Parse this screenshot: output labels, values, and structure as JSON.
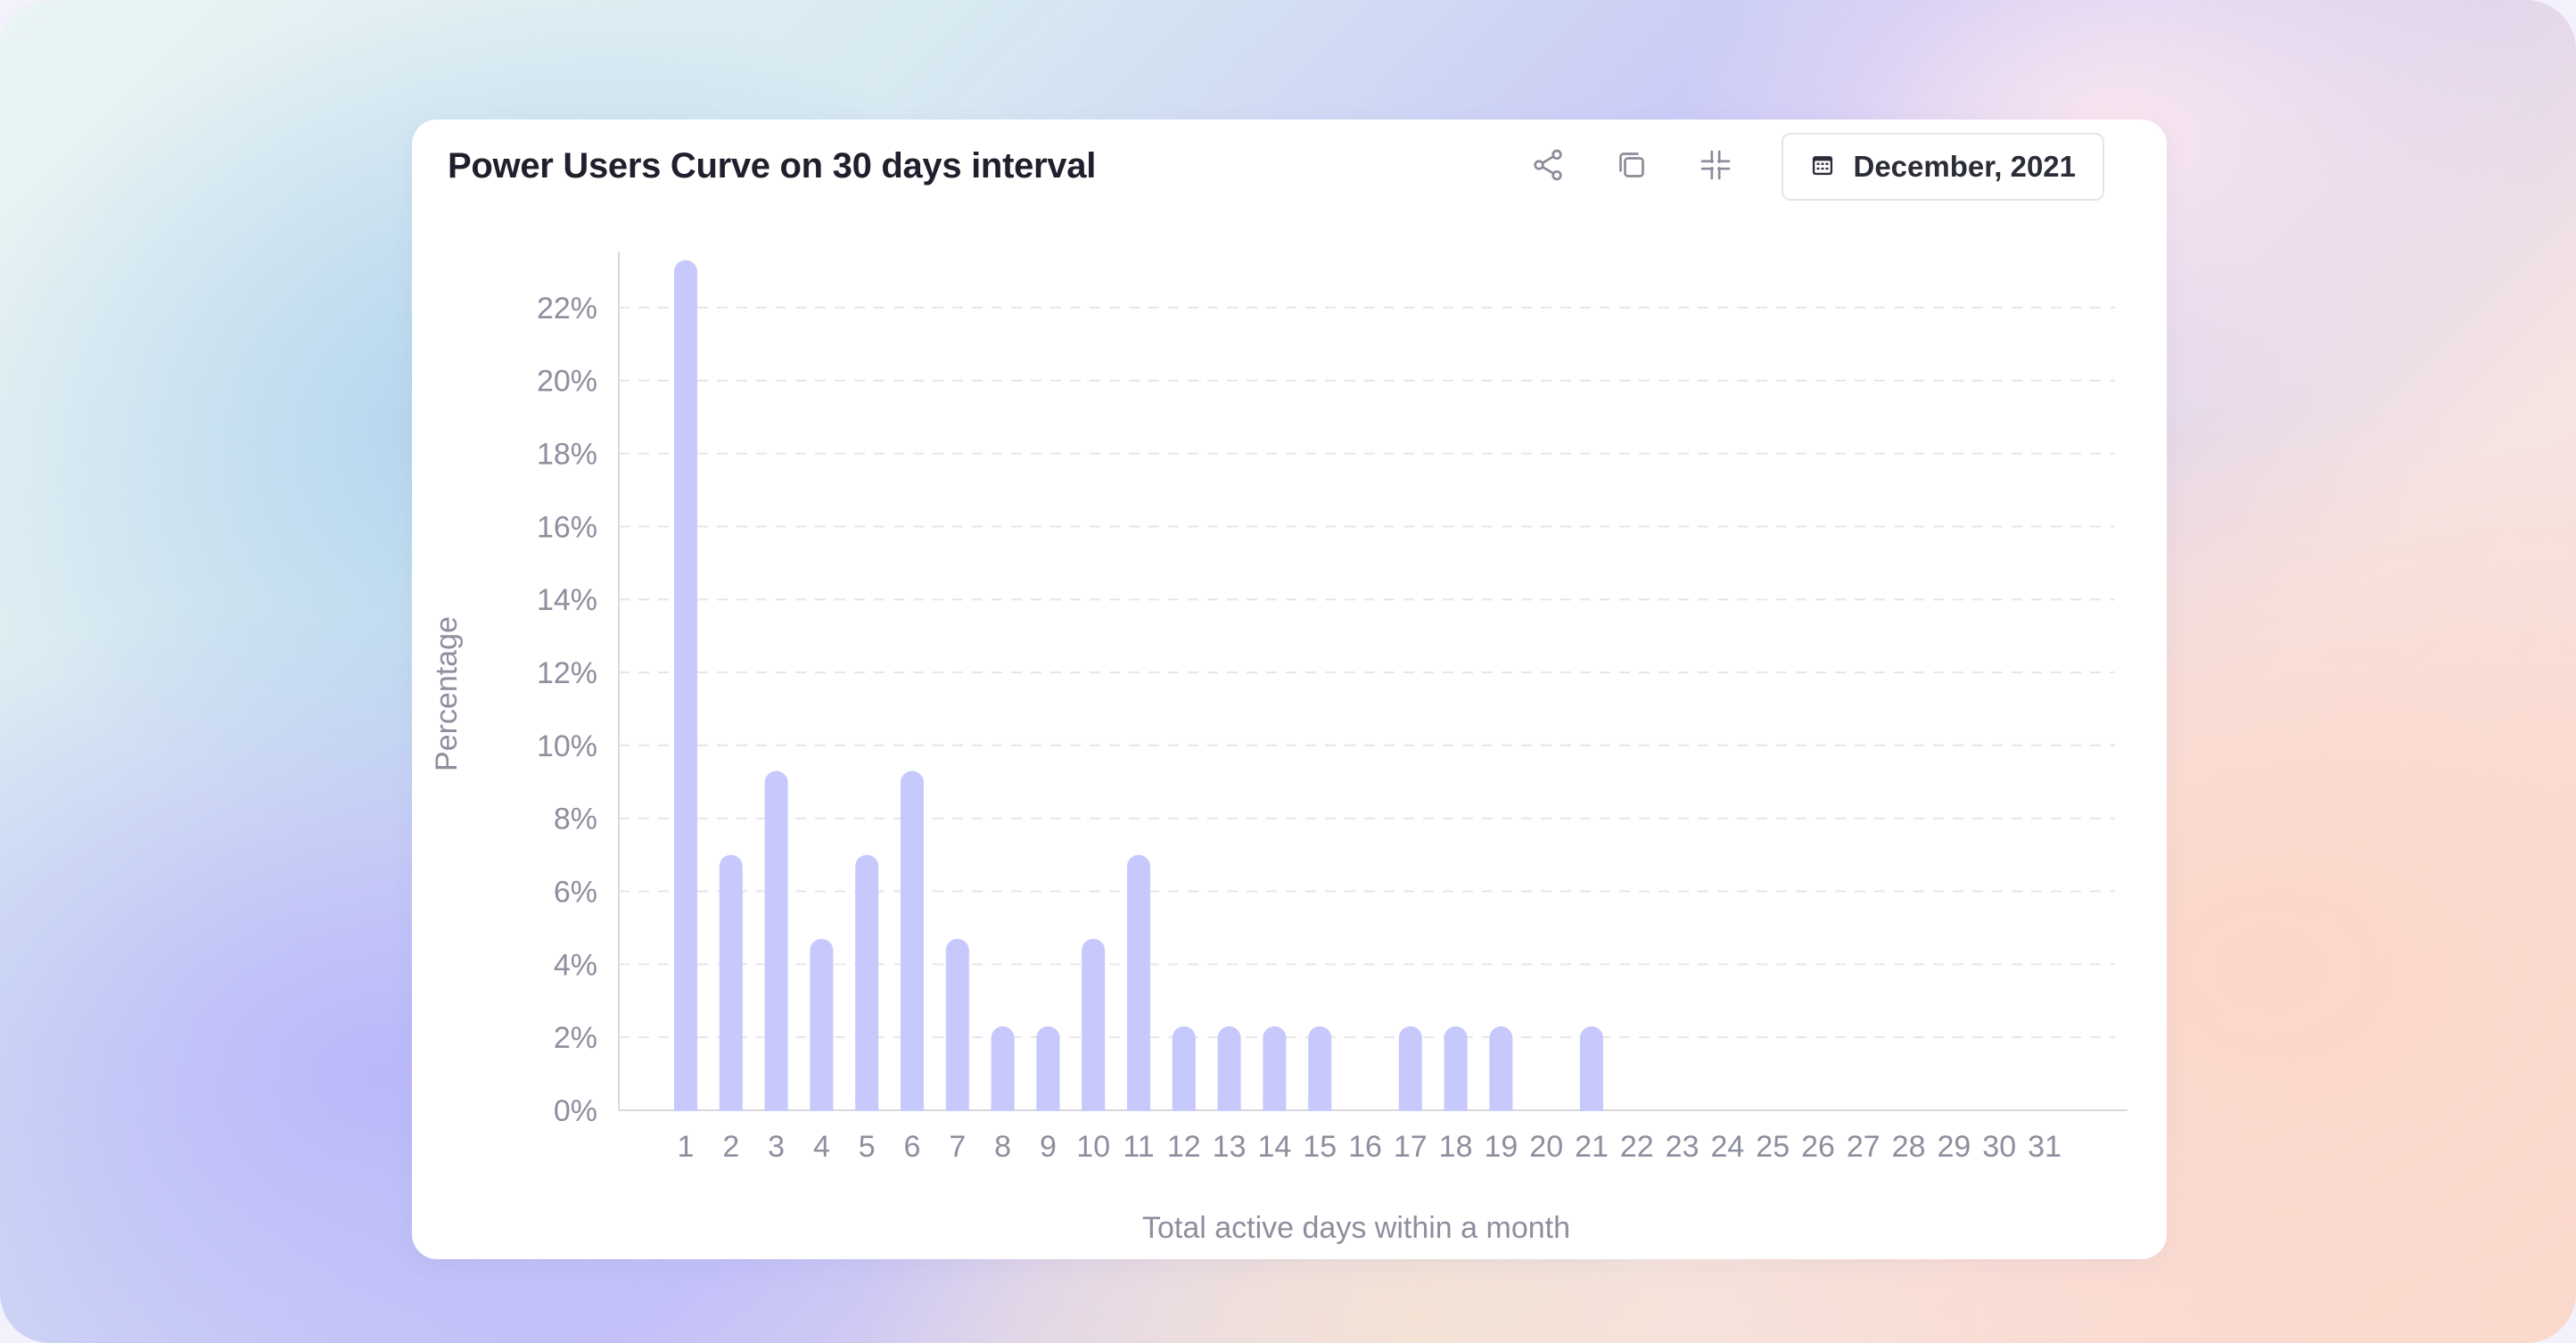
{
  "card": {
    "title": "Power Users Curve on 30 days interval",
    "date_label": "December, 2021"
  },
  "icons": {
    "share": "share-icon",
    "copy": "copy-icon",
    "slack": "slack-icon",
    "calendar": "calendar-icon"
  },
  "colors": {
    "bar": "#c7c8fb",
    "grid": "#e6e6ec",
    "axis": "#d9d9e0",
    "tick_text": "#8d8f9e"
  },
  "chart_data": {
    "type": "bar",
    "xlabel": "Total active days within a month",
    "ylabel": "Percentage",
    "ylim": [
      0,
      23
    ],
    "yticks": [
      0,
      2,
      4,
      6,
      8,
      10,
      12,
      14,
      16,
      18,
      20,
      22
    ],
    "ytick_labels": [
      "0%",
      "2%",
      "4%",
      "6%",
      "8%",
      "10%",
      "12%",
      "14%",
      "16%",
      "18%",
      "20%",
      "22%"
    ],
    "grid": "horizontal dashed",
    "categories": [
      "1",
      "2",
      "3",
      "4",
      "5",
      "6",
      "7",
      "8",
      "9",
      "10",
      "11",
      "12",
      "13",
      "14",
      "15",
      "16",
      "17",
      "18",
      "19",
      "20",
      "21",
      "22",
      "23",
      "24",
      "25",
      "26",
      "27",
      "28",
      "29",
      "30",
      "31"
    ],
    "values": [
      23.3,
      7.0,
      9.3,
      4.7,
      7.0,
      9.3,
      4.7,
      2.3,
      2.3,
      4.7,
      7.0,
      2.3,
      2.3,
      2.3,
      2.3,
      0,
      2.3,
      2.3,
      2.3,
      0,
      2.3,
      0,
      0,
      0,
      0,
      0,
      0,
      0,
      0,
      0,
      0
    ]
  }
}
